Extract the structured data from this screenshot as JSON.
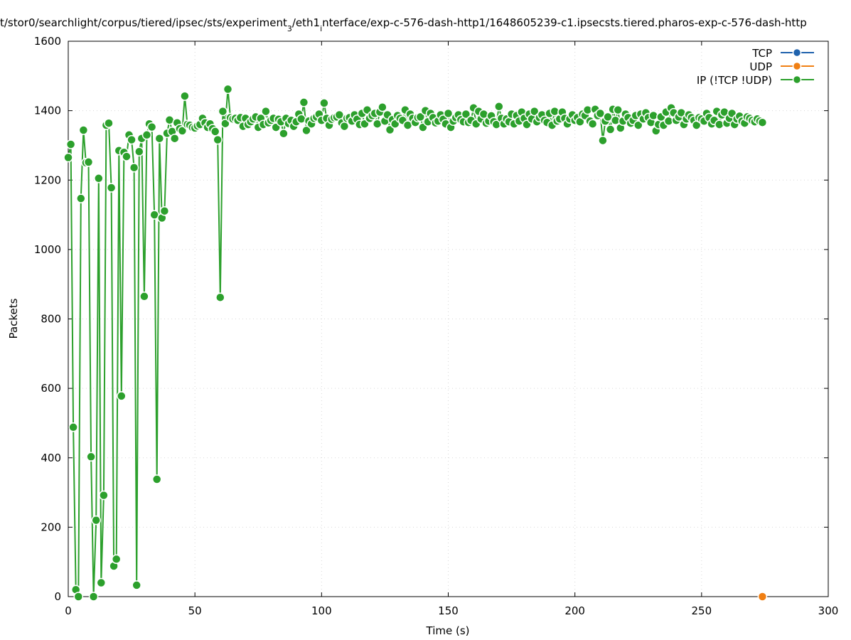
{
  "chart_data": {
    "type": "line",
    "title": "t/stor0/searchlight/corpus/tiered/ipsec/sts/experiment_3/eth1_interface/exp-c-576-dash-http1/1648605239-c1.ipsecsts.tiered.pharos-exp-c-576-dash-http",
    "title_parts": {
      "part1": "t/stor0/searchlight/corpus/tiered/ipsec/sts/experiment",
      "sub1": "3",
      "part2": "/eth1",
      "sub2": "i",
      "part3": "nterface/exp-c-576-dash-http1/1648605239-c1.ipsecsts.tiered.pharos-exp-c-576-dash-http"
    },
    "xlabel": "Time (s)",
    "ylabel": "Packets",
    "xlim": [
      0,
      300
    ],
    "ylim": [
      0,
      1600
    ],
    "xticks": [
      0,
      50,
      100,
      150,
      200,
      250,
      300
    ],
    "yticks": [
      0,
      200,
      400,
      600,
      800,
      1000,
      1200,
      1400,
      1600
    ],
    "grid": true,
    "legend_position": "top-right",
    "series": [
      {
        "name": "TCP",
        "color": "#1f62ad",
        "x": [],
        "y": []
      },
      {
        "name": "UDP",
        "color": "#f07f13",
        "x": [
          274
        ],
        "y": [
          0
        ]
      },
      {
        "name": "IP (!TCP  !UDP)",
        "color": "#2ca02c",
        "x": [
          0,
          1,
          2,
          3,
          4,
          5,
          6,
          7,
          8,
          9,
          10,
          11,
          12,
          13,
          14,
          15,
          16,
          17,
          18,
          19,
          20,
          21,
          22,
          23,
          24,
          25,
          26,
          27,
          28,
          29,
          30,
          31,
          32,
          33,
          34,
          35,
          36,
          37,
          38,
          39,
          40,
          41,
          42,
          43,
          44,
          45,
          46,
          47,
          48,
          49,
          50,
          51,
          52,
          53,
          54,
          55,
          56,
          57,
          58,
          59,
          60,
          61,
          62,
          63,
          64,
          65,
          66,
          67,
          68,
          69,
          70,
          71,
          72,
          73,
          74,
          75,
          76,
          77,
          78,
          79,
          80,
          81,
          82,
          83,
          84,
          85,
          86,
          87,
          88,
          89,
          90,
          91,
          92,
          93,
          94,
          95,
          96,
          97,
          98,
          99,
          100,
          101,
          102,
          103,
          104,
          105,
          106,
          107,
          108,
          109,
          110,
          111,
          112,
          113,
          114,
          115,
          116,
          117,
          118,
          119,
          120,
          121,
          122,
          123,
          124,
          125,
          126,
          127,
          128,
          129,
          130,
          131,
          132,
          133,
          134,
          135,
          136,
          137,
          138,
          139,
          140,
          141,
          142,
          143,
          144,
          145,
          146,
          147,
          148,
          149,
          150,
          151,
          152,
          153,
          154,
          155,
          156,
          157,
          158,
          159,
          160,
          161,
          162,
          163,
          164,
          165,
          166,
          167,
          168,
          169,
          170,
          171,
          172,
          173,
          174,
          175,
          176,
          177,
          178,
          179,
          180,
          181,
          182,
          183,
          184,
          185,
          186,
          187,
          188,
          189,
          190,
          191,
          192,
          193,
          194,
          195,
          196,
          197,
          198,
          199,
          200,
          201,
          202,
          203,
          204,
          205,
          206,
          207,
          208,
          209,
          210,
          211,
          212,
          213,
          214,
          215,
          216,
          217,
          218,
          219,
          220,
          221,
          222,
          223,
          224,
          225,
          226,
          227,
          228,
          229,
          230,
          231,
          232,
          233,
          234,
          235,
          236,
          237,
          238,
          239,
          240,
          241,
          242,
          243,
          244,
          245,
          246,
          247,
          248,
          249,
          250,
          251,
          252,
          253,
          254,
          255,
          256,
          257,
          258,
          259,
          260,
          261,
          262,
          263,
          264,
          265,
          266,
          267,
          268,
          269,
          270,
          271,
          272,
          273,
          274
        ],
        "y": [
          1265,
          1303,
          488,
          20,
          0,
          1147,
          1344,
          1250,
          1252,
          403,
          0,
          220,
          1205,
          40,
          292,
          1358,
          1364,
          1178,
          88,
          108,
          1285,
          578,
          1280,
          1268,
          1330,
          1316,
          1236,
          33,
          1282,
          1320,
          865,
          1330,
          1362,
          1353,
          1100,
          338,
          1320,
          1091,
          1111,
          1335,
          1373,
          1340,
          1320,
          1365,
          1348,
          1342,
          1442,
          1360,
          1358,
          1352,
          1350,
          1356,
          1360,
          1378,
          1365,
          1352,
          1362,
          1348,
          1340,
          1316,
          862,
          1398,
          1363,
          1462,
          1380,
          1376,
          1378,
          1372,
          1380,
          1355,
          1378,
          1360,
          1368,
          1376,
          1382,
          1352,
          1378,
          1360,
          1398,
          1365,
          1372,
          1378,
          1352,
          1375,
          1368,
          1334,
          1378,
          1363,
          1372,
          1355,
          1368,
          1390,
          1376,
          1424,
          1343,
          1370,
          1362,
          1378,
          1382,
          1390,
          1372,
          1422,
          1378,
          1358,
          1375,
          1380,
          1382,
          1388,
          1365,
          1355,
          1378,
          1380,
          1370,
          1388,
          1375,
          1360,
          1392,
          1362,
          1402,
          1378,
          1386,
          1392,
          1362,
          1396,
          1410,
          1370,
          1388,
          1345,
          1374,
          1362,
          1386,
          1378,
          1372,
          1402,
          1358,
          1390,
          1378,
          1366,
          1380,
          1382,
          1352,
          1400,
          1368,
          1392,
          1380,
          1365,
          1370,
          1388,
          1375,
          1362,
          1392,
          1352,
          1370,
          1380,
          1388,
          1374,
          1368,
          1390,
          1366,
          1372,
          1408,
          1362,
          1398,
          1376,
          1390,
          1364,
          1370,
          1385,
          1368,
          1360,
          1412,
          1378,
          1362,
          1376,
          1368,
          1390,
          1362,
          1386,
          1370,
          1396,
          1378,
          1360,
          1390,
          1376,
          1398,
          1368,
          1380,
          1388,
          1372,
          1366,
          1392,
          1358,
          1398,
          1370,
          1376,
          1396,
          1378,
          1362,
          1376,
          1388,
          1372,
          1380,
          1368,
          1390,
          1386,
          1402,
          1370,
          1362,
          1404,
          1386,
          1392,
          1314,
          1370,
          1382,
          1346,
          1404,
          1372,
          1402,
          1350,
          1370,
          1390,
          1380,
          1364,
          1372,
          1386,
          1358,
          1390,
          1376,
          1394,
          1380,
          1366,
          1386,
          1342,
          1360,
          1382,
          1358,
          1396,
          1370,
          1408,
          1394,
          1372,
          1382,
          1394,
          1360,
          1376,
          1388,
          1380,
          1372,
          1358,
          1380,
          1376,
          1370,
          1392,
          1380,
          1362,
          1372,
          1398,
          1360,
          1388,
          1396,
          1364,
          1378,
          1392,
          1360,
          1376,
          1384,
          1370,
          1364,
          1382,
          1378,
          1372,
          1368,
          1376,
          1370,
          1366
        ]
      }
    ]
  }
}
